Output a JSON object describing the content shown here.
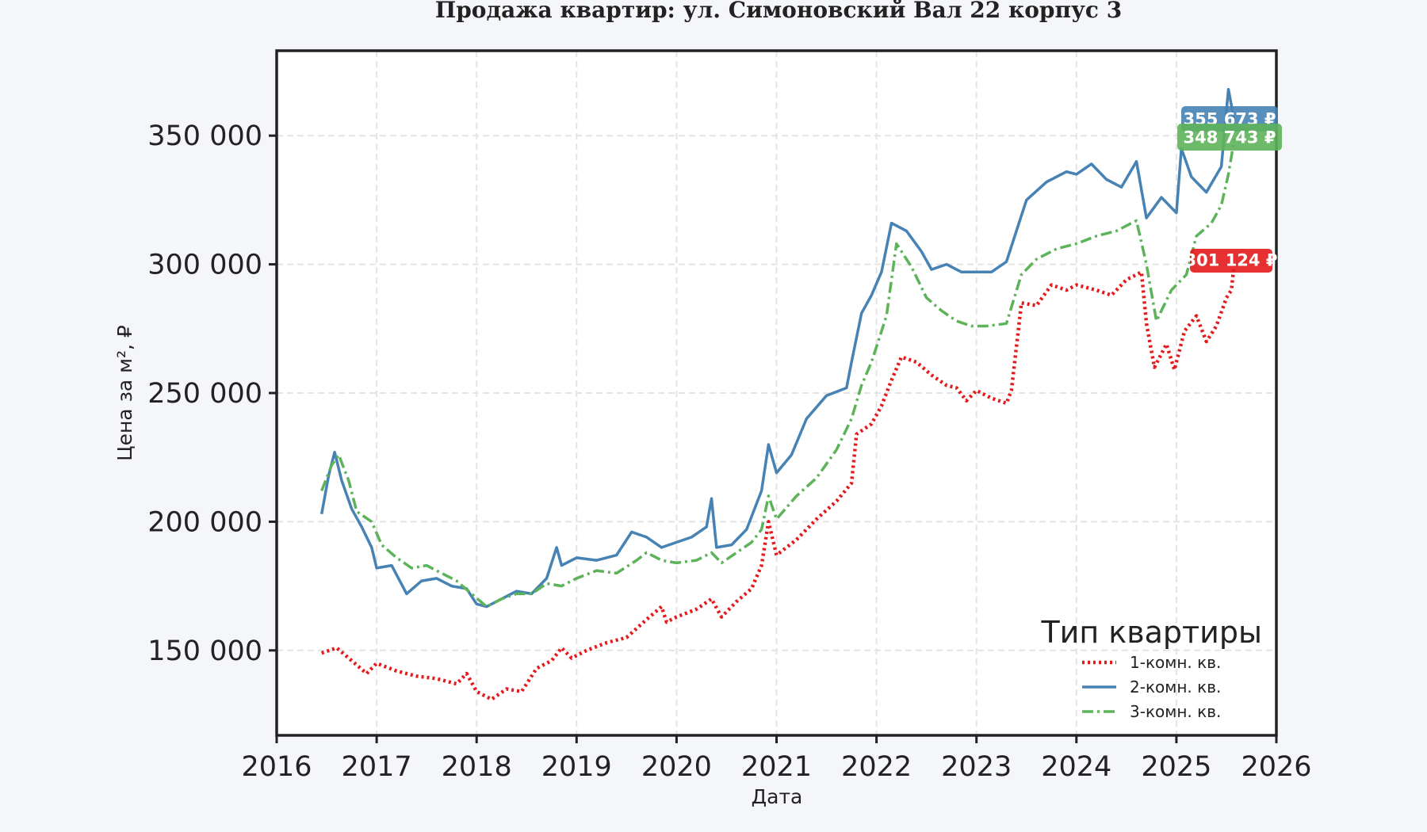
{
  "chart_data": {
    "type": "line",
    "title": "Продажа квартир: ул. Симоновский Вал 22 корпус 3",
    "xlabel": "Дата",
    "ylabel": "Цена за м², ₽",
    "xlim": [
      2016,
      2026
    ],
    "ylim": [
      117000,
      383000
    ],
    "x_ticks": [
      "2016",
      "2017",
      "2018",
      "2019",
      "2020",
      "2021",
      "2022",
      "2023",
      "2024",
      "2025",
      "2026"
    ],
    "y_ticks": [
      {
        "value": 150000,
        "label": "150 000"
      },
      {
        "value": 200000,
        "label": "200 000"
      },
      {
        "value": 250000,
        "label": "250 000"
      },
      {
        "value": 300000,
        "label": "300 000"
      },
      {
        "value": 350000,
        "label": "350 000"
      }
    ],
    "grid": true,
    "legend_title": "Тип квартиры",
    "legend_position": "bottom-right",
    "series": [
      {
        "name": "1-комн. кв.",
        "color": "#e41a1c",
        "style": "dotted",
        "last_label": "301 124 ₽",
        "points": [
          [
            2016.45,
            149000
          ],
          [
            2016.6,
            151000
          ],
          [
            2016.75,
            146000
          ],
          [
            2016.9,
            141000
          ],
          [
            2017.0,
            145000
          ],
          [
            2017.2,
            142000
          ],
          [
            2017.4,
            140000
          ],
          [
            2017.6,
            139000
          ],
          [
            2017.8,
            137000
          ],
          [
            2017.9,
            141000
          ],
          [
            2018.0,
            134000
          ],
          [
            2018.15,
            131000
          ],
          [
            2018.3,
            135000
          ],
          [
            2018.45,
            134000
          ],
          [
            2018.6,
            143000
          ],
          [
            2018.75,
            146000
          ],
          [
            2018.85,
            151000
          ],
          [
            2018.95,
            147000
          ],
          [
            2019.1,
            150000
          ],
          [
            2019.3,
            153000
          ],
          [
            2019.5,
            155000
          ],
          [
            2019.7,
            162000
          ],
          [
            2019.85,
            167000
          ],
          [
            2019.9,
            161000
          ],
          [
            2020.0,
            163000
          ],
          [
            2020.2,
            166000
          ],
          [
            2020.35,
            170000
          ],
          [
            2020.45,
            163000
          ],
          [
            2020.6,
            169000
          ],
          [
            2020.75,
            174000
          ],
          [
            2020.85,
            183000
          ],
          [
            2020.92,
            200000
          ],
          [
            2021.0,
            187000
          ],
          [
            2021.2,
            193000
          ],
          [
            2021.4,
            201000
          ],
          [
            2021.6,
            208000
          ],
          [
            2021.75,
            215000
          ],
          [
            2021.8,
            234000
          ],
          [
            2021.95,
            238000
          ],
          [
            2022.05,
            245000
          ],
          [
            2022.15,
            255000
          ],
          [
            2022.25,
            264000
          ],
          [
            2022.4,
            262000
          ],
          [
            2022.55,
            257000
          ],
          [
            2022.7,
            253000
          ],
          [
            2022.8,
            252000
          ],
          [
            2022.9,
            247000
          ],
          [
            2023.0,
            251000
          ],
          [
            2023.15,
            248000
          ],
          [
            2023.3,
            246000
          ],
          [
            2023.35,
            251000
          ],
          [
            2023.45,
            285000
          ],
          [
            2023.6,
            284000
          ],
          [
            2023.75,
            292000
          ],
          [
            2023.9,
            290000
          ],
          [
            2024.0,
            292000
          ],
          [
            2024.2,
            290000
          ],
          [
            2024.35,
            288000
          ],
          [
            2024.5,
            294000
          ],
          [
            2024.65,
            297000
          ],
          [
            2024.7,
            277000
          ],
          [
            2024.78,
            260000
          ],
          [
            2024.9,
            269000
          ],
          [
            2024.98,
            259000
          ],
          [
            2025.08,
            274000
          ],
          [
            2025.2,
            280000
          ],
          [
            2025.3,
            270000
          ],
          [
            2025.4,
            276000
          ],
          [
            2025.5,
            287000
          ],
          [
            2025.55,
            290000
          ],
          [
            2025.58,
            301124
          ]
        ]
      },
      {
        "name": "2-комн. кв.",
        "color": "#4682b4",
        "style": "solid",
        "last_label": "355 673 ₽",
        "points": [
          [
            2016.45,
            203000
          ],
          [
            2016.52,
            218000
          ],
          [
            2016.58,
            227000
          ],
          [
            2016.65,
            216000
          ],
          [
            2016.75,
            205000
          ],
          [
            2016.85,
            198000
          ],
          [
            2016.95,
            190000
          ],
          [
            2017.0,
            182000
          ],
          [
            2017.15,
            183000
          ],
          [
            2017.3,
            172000
          ],
          [
            2017.45,
            177000
          ],
          [
            2017.6,
            178000
          ],
          [
            2017.75,
            175000
          ],
          [
            2017.9,
            174000
          ],
          [
            2018.0,
            168000
          ],
          [
            2018.1,
            167000
          ],
          [
            2018.25,
            170000
          ],
          [
            2018.4,
            173000
          ],
          [
            2018.55,
            172000
          ],
          [
            2018.7,
            178000
          ],
          [
            2018.8,
            190000
          ],
          [
            2018.85,
            183000
          ],
          [
            2019.0,
            186000
          ],
          [
            2019.2,
            185000
          ],
          [
            2019.4,
            187000
          ],
          [
            2019.55,
            196000
          ],
          [
            2019.7,
            194000
          ],
          [
            2019.85,
            190000
          ],
          [
            2020.0,
            192000
          ],
          [
            2020.15,
            194000
          ],
          [
            2020.3,
            198000
          ],
          [
            2020.35,
            209000
          ],
          [
            2020.4,
            190000
          ],
          [
            2020.55,
            191000
          ],
          [
            2020.7,
            197000
          ],
          [
            2020.85,
            212000
          ],
          [
            2020.92,
            230000
          ],
          [
            2021.0,
            219000
          ],
          [
            2021.15,
            226000
          ],
          [
            2021.3,
            240000
          ],
          [
            2021.5,
            249000
          ],
          [
            2021.7,
            252000
          ],
          [
            2021.75,
            262000
          ],
          [
            2021.85,
            281000
          ],
          [
            2021.95,
            288000
          ],
          [
            2022.05,
            297000
          ],
          [
            2022.15,
            316000
          ],
          [
            2022.3,
            313000
          ],
          [
            2022.45,
            305000
          ],
          [
            2022.55,
            298000
          ],
          [
            2022.7,
            300000
          ],
          [
            2022.85,
            297000
          ],
          [
            2023.0,
            297000
          ],
          [
            2023.15,
            297000
          ],
          [
            2023.3,
            301000
          ],
          [
            2023.4,
            313000
          ],
          [
            2023.5,
            325000
          ],
          [
            2023.7,
            332000
          ],
          [
            2023.9,
            336000
          ],
          [
            2024.0,
            335000
          ],
          [
            2024.15,
            339000
          ],
          [
            2024.3,
            333000
          ],
          [
            2024.45,
            330000
          ],
          [
            2024.6,
            340000
          ],
          [
            2024.7,
            318000
          ],
          [
            2024.85,
            326000
          ],
          [
            2025.0,
            320000
          ],
          [
            2025.05,
            345000
          ],
          [
            2025.15,
            334000
          ],
          [
            2025.3,
            328000
          ],
          [
            2025.45,
            338000
          ],
          [
            2025.52,
            368000
          ],
          [
            2025.58,
            355673
          ]
        ]
      },
      {
        "name": "3-комн. кв.",
        "color": "#5db35a",
        "style": "dashdot",
        "last_label": "348 743 ₽",
        "points": [
          [
            2016.45,
            212000
          ],
          [
            2016.55,
            222000
          ],
          [
            2016.62,
            226000
          ],
          [
            2016.72,
            216000
          ],
          [
            2016.8,
            204000
          ],
          [
            2016.95,
            200000
          ],
          [
            2017.05,
            191000
          ],
          [
            2017.2,
            186000
          ],
          [
            2017.35,
            182000
          ],
          [
            2017.5,
            183000
          ],
          [
            2017.65,
            180000
          ],
          [
            2017.8,
            177000
          ],
          [
            2017.95,
            172000
          ],
          [
            2018.1,
            167000
          ],
          [
            2018.25,
            170000
          ],
          [
            2018.4,
            172000
          ],
          [
            2018.55,
            172000
          ],
          [
            2018.7,
            176000
          ],
          [
            2018.85,
            175000
          ],
          [
            2019.0,
            178000
          ],
          [
            2019.2,
            181000
          ],
          [
            2019.4,
            180000
          ],
          [
            2019.6,
            185000
          ],
          [
            2019.7,
            188000
          ],
          [
            2019.85,
            185000
          ],
          [
            2020.0,
            184000
          ],
          [
            2020.2,
            185000
          ],
          [
            2020.35,
            188000
          ],
          [
            2020.45,
            184000
          ],
          [
            2020.6,
            188000
          ],
          [
            2020.75,
            192000
          ],
          [
            2020.85,
            197000
          ],
          [
            2020.92,
            210000
          ],
          [
            2021.0,
            201000
          ],
          [
            2021.2,
            210000
          ],
          [
            2021.4,
            217000
          ],
          [
            2021.6,
            228000
          ],
          [
            2021.75,
            240000
          ],
          [
            2021.85,
            253000
          ],
          [
            2021.95,
            262000
          ],
          [
            2022.1,
            280000
          ],
          [
            2022.2,
            308000
          ],
          [
            2022.35,
            299000
          ],
          [
            2022.5,
            287000
          ],
          [
            2022.65,
            282000
          ],
          [
            2022.8,
            278000
          ],
          [
            2022.95,
            276000
          ],
          [
            2023.1,
            276000
          ],
          [
            2023.3,
            277000
          ],
          [
            2023.45,
            296000
          ],
          [
            2023.6,
            302000
          ],
          [
            2023.8,
            306000
          ],
          [
            2024.0,
            308000
          ],
          [
            2024.2,
            311000
          ],
          [
            2024.4,
            313000
          ],
          [
            2024.6,
            317000
          ],
          [
            2024.7,
            300000
          ],
          [
            2024.8,
            278000
          ],
          [
            2024.95,
            290000
          ],
          [
            2025.1,
            296000
          ],
          [
            2025.2,
            311000
          ],
          [
            2025.35,
            316000
          ],
          [
            2025.45,
            323000
          ],
          [
            2025.52,
            335000
          ],
          [
            2025.58,
            348743
          ]
        ]
      }
    ]
  }
}
